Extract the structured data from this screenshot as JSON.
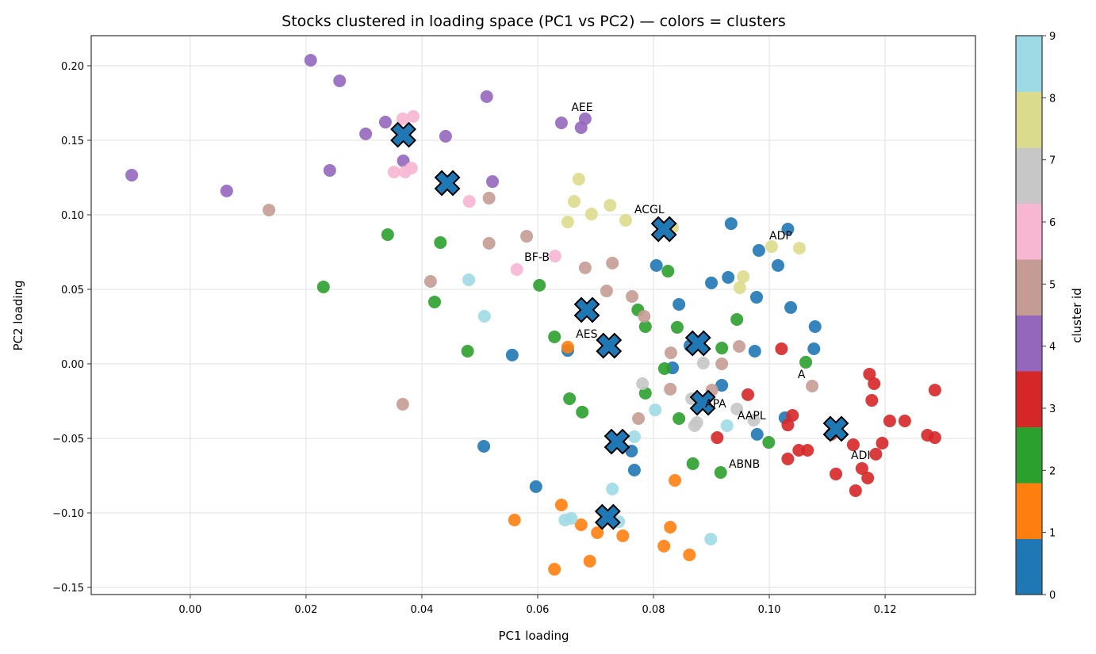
{
  "chart_data": {
    "type": "scatter",
    "title": "Stocks clustered in loading space (PC1 vs PC2) — colors = clusters",
    "xlabel": "PC1 loading",
    "ylabel": "PC2 loading",
    "xlim": [
      -0.0171,
      0.1356
    ],
    "ylim": [
      -0.1548,
      0.2202
    ],
    "xticks": [
      0.0,
      0.02,
      0.04,
      0.06,
      0.08,
      0.1,
      0.12
    ],
    "xtick_labels": [
      "0.00",
      "0.02",
      "0.04",
      "0.06",
      "0.08",
      "0.10",
      "0.12"
    ],
    "yticks": [
      -0.15,
      -0.1,
      -0.05,
      0.0,
      0.05,
      0.1,
      0.15,
      0.2
    ],
    "ytick_labels": [
      "−0.15",
      "−0.10",
      "−0.05",
      "0.00",
      "0.05",
      "0.10",
      "0.15",
      "0.20"
    ],
    "grid": true,
    "colorbar": {
      "label": "cluster id",
      "ticks": [
        "0",
        "1",
        "2",
        "3",
        "4",
        "5",
        "6",
        "7",
        "8",
        "9"
      ],
      "colors": [
        "#1f77b4",
        "#ff7f0e",
        "#2ca02c",
        "#d62728",
        "#9467bd",
        "#c49c94",
        "#f7b6d2",
        "#c7c7c7",
        "#dbdb8d",
        "#9edae5"
      ]
    },
    "clusters": [
      {
        "id": 0,
        "points": [
          [
            0.0934,
            0.0941
          ],
          [
            0.1032,
            0.0904
          ],
          [
            0.0982,
            0.0761
          ],
          [
            0.1015,
            0.066
          ],
          [
            0.0929,
            0.058
          ],
          [
            0.09,
            0.0543
          ],
          [
            0.0805,
            0.066
          ],
          [
            0.0844,
            0.0399
          ],
          [
            0.0978,
            0.0447
          ],
          [
            0.1037,
            0.0378
          ],
          [
            0.1079,
            0.025
          ],
          [
            0.1077,
            0.0101
          ],
          [
            0.0975,
            0.0085
          ],
          [
            0.0863,
            0.0122
          ],
          [
            0.0833,
            -0.0027
          ],
          [
            0.0918,
            -0.0144
          ],
          [
            0.1027,
            -0.0362
          ],
          [
            0.0979,
            -0.0473
          ],
          [
            0.0556,
            0.0059
          ],
          [
            0.0652,
            0.009
          ],
          [
            0.0507,
            -0.0553
          ],
          [
            0.0597,
            -0.0824
          ],
          [
            0.0762,
            -0.0585
          ],
          [
            0.0767,
            -0.0713
          ]
        ]
      },
      {
        "id": 1,
        "points": [
          [
            0.0652,
            0.0112
          ],
          [
            0.056,
            -0.1048
          ],
          [
            0.0641,
            -0.0947
          ],
          [
            0.0675,
            -0.108
          ],
          [
            0.0703,
            -0.1133
          ],
          [
            0.0747,
            -0.1154
          ],
          [
            0.0837,
            -0.0782
          ],
          [
            0.0829,
            -0.1096
          ],
          [
            0.0818,
            -0.1223
          ],
          [
            0.0862,
            -0.1282
          ],
          [
            0.069,
            -0.1324
          ],
          [
            0.0629,
            -0.1378
          ]
        ]
      },
      {
        "id": 2,
        "points": [
          [
            0.0341,
            0.0867
          ],
          [
            0.0432,
            0.0814
          ],
          [
            0.023,
            0.0516
          ],
          [
            0.0422,
            0.0415
          ],
          [
            0.0603,
            0.0527
          ],
          [
            0.0825,
            0.0622
          ],
          [
            0.0773,
            0.0362
          ],
          [
            0.0786,
            0.025
          ],
          [
            0.0841,
            0.0245
          ],
          [
            0.0944,
            0.0298
          ],
          [
            0.0918,
            0.0106
          ],
          [
            0.0629,
            0.0181
          ],
          [
            0.0479,
            0.0085
          ],
          [
            0.0819,
            -0.0032
          ],
          [
            0.1063,
            0.0011
          ],
          [
            0.0786,
            -0.0197
          ],
          [
            0.0655,
            -0.0234
          ],
          [
            0.0677,
            -0.0324
          ],
          [
            0.0844,
            -0.0367
          ],
          [
            0.0999,
            -0.0527
          ],
          [
            0.0868,
            -0.067
          ],
          [
            0.0916,
            -0.0729
          ]
        ]
      },
      {
        "id": 3,
        "points": [
          [
            0.1021,
            0.0101
          ],
          [
            0.0963,
            -0.0207
          ],
          [
            0.1173,
            -0.0069
          ],
          [
            0.1181,
            -0.0133
          ],
          [
            0.1177,
            -0.0245
          ],
          [
            0.1286,
            -0.0176
          ],
          [
            0.104,
            -0.0346
          ],
          [
            0.1032,
            -0.041
          ],
          [
            0.091,
            -0.0495
          ],
          [
            0.1208,
            -0.0383
          ],
          [
            0.1234,
            -0.0383
          ],
          [
            0.1107,
            -0.0473
          ],
          [
            0.1273,
            -0.0479
          ],
          [
            0.1286,
            -0.0495
          ],
          [
            0.1195,
            -0.0532
          ],
          [
            0.1145,
            -0.0543
          ],
          [
            0.1051,
            -0.058
          ],
          [
            0.1066,
            -0.058
          ],
          [
            0.1032,
            -0.0638
          ],
          [
            0.1184,
            -0.0606
          ],
          [
            0.116,
            -0.0702
          ],
          [
            0.1115,
            -0.0739
          ],
          [
            0.117,
            -0.0766
          ],
          [
            0.1149,
            -0.0851
          ]
        ]
      },
      {
        "id": 4,
        "points": [
          [
            0.0208,
            0.2037
          ],
          [
            0.0258,
            0.1899
          ],
          [
            0.0512,
            0.1793
          ],
          [
            -0.0101,
            0.1266
          ],
          [
            0.0063,
            0.116
          ],
          [
            0.0303,
            0.1543
          ],
          [
            0.0337,
            0.1622
          ],
          [
            0.0441,
            0.1527
          ],
          [
            0.0241,
            0.1298
          ],
          [
            0.0368,
            0.1362
          ],
          [
            0.0522,
            0.1223
          ],
          [
            0.0641,
            0.1617
          ],
          [
            0.0682,
            0.1644
          ],
          [
            0.0675,
            0.1585
          ]
        ]
      },
      {
        "id": 5,
        "points": [
          [
            0.0136,
            0.1032
          ],
          [
            0.0516,
            0.1112
          ],
          [
            0.0516,
            0.0809
          ],
          [
            0.0581,
            0.0856
          ],
          [
            0.0415,
            0.0553
          ],
          [
            0.0682,
            0.0644
          ],
          [
            0.0729,
            0.0676
          ],
          [
            0.0719,
            0.0489
          ],
          [
            0.0763,
            0.0452
          ],
          [
            0.0784,
            0.0319
          ],
          [
            0.0367,
            -0.0271
          ],
          [
            0.0774,
            -0.0367
          ],
          [
            0.083,
            0.0074
          ],
          [
            0.0829,
            -0.017
          ],
          [
            0.0918,
            -0.0
          ],
          [
            0.0948,
            0.0117
          ],
          [
            0.0901,
            -0.0176
          ],
          [
            0.1074,
            -0.0149
          ]
        ]
      },
      {
        "id": 6,
        "points": [
          [
            0.0367,
            0.1644
          ],
          [
            0.0385,
            0.166
          ],
          [
            0.0352,
            0.1287
          ],
          [
            0.0371,
            0.1287
          ],
          [
            0.0382,
            0.1314
          ],
          [
            0.0482,
            0.109
          ],
          [
            0.0564,
            0.0633
          ],
          [
            0.063,
            0.0723
          ]
        ]
      },
      {
        "id": 7,
        "points": [
          [
            0.0781,
            -0.0133
          ],
          [
            0.0886,
            0.0005
          ],
          [
            0.0866,
            -0.0234
          ],
          [
            0.0875,
            -0.0394
          ],
          [
            0.0871,
            -0.0415
          ],
          [
            0.0944,
            -0.0303
          ],
          [
            0.0973,
            -0.0378
          ]
        ]
      },
      {
        "id": 8,
        "points": [
          [
            0.0671,
            0.1239
          ],
          [
            0.0663,
            0.109
          ],
          [
            0.0693,
            0.1005
          ],
          [
            0.0725,
            0.1064
          ],
          [
            0.0752,
            0.0963
          ],
          [
            0.0652,
            0.0952
          ],
          [
            0.0833,
            0.0915
          ],
          [
            0.1004,
            0.0787
          ],
          [
            0.1052,
            0.0776
          ],
          [
            0.0955,
            0.0585
          ],
          [
            0.0949,
            0.0511
          ]
        ]
      },
      {
        "id": 9,
        "points": [
          [
            0.0481,
            0.0564
          ],
          [
            0.0508,
            0.0319
          ],
          [
            0.0803,
            -0.0309
          ],
          [
            0.0767,
            -0.0489
          ],
          [
            0.0927,
            -0.0415
          ],
          [
            0.0729,
            -0.084
          ],
          [
            0.0647,
            -0.1048
          ],
          [
            0.0658,
            -0.1037
          ],
          [
            0.074,
            -0.1059
          ],
          [
            0.0899,
            -0.1176
          ]
        ]
      }
    ],
    "centroids": [
      [
        0.0368,
        0.1537
      ],
      [
        0.0444,
        0.1213
      ],
      [
        0.0818,
        0.0904
      ],
      [
        0.0685,
        0.0362
      ],
      [
        0.0723,
        0.0122
      ],
      [
        0.0877,
        0.0138
      ],
      [
        0.0885,
        -0.0261
      ],
      [
        0.1115,
        -0.0436
      ],
      [
        0.0737,
        -0.0522
      ],
      [
        0.0721,
        -0.1027
      ]
    ],
    "annotations": [
      {
        "text": "AEE",
        "x": 0.0658,
        "y": 0.1697
      },
      {
        "text": "ACGL",
        "x": 0.0767,
        "y": 0.1011
      },
      {
        "text": "ADP",
        "x": 0.1,
        "y": 0.0835
      },
      {
        "text": "BF-B",
        "x": 0.0577,
        "y": 0.0691
      },
      {
        "text": "AES",
        "x": 0.0666,
        "y": 0.0176
      },
      {
        "text": "A",
        "x": 0.1049,
        "y": -0.0096
      },
      {
        "text": "APA",
        "x": 0.0889,
        "y": -0.0293
      },
      {
        "text": "AAPL",
        "x": 0.0945,
        "y": -0.0373
      },
      {
        "text": "ABNB",
        "x": 0.093,
        "y": -0.0697
      },
      {
        "text": "ADI",
        "x": 0.1141,
        "y": -0.0638
      }
    ]
  }
}
